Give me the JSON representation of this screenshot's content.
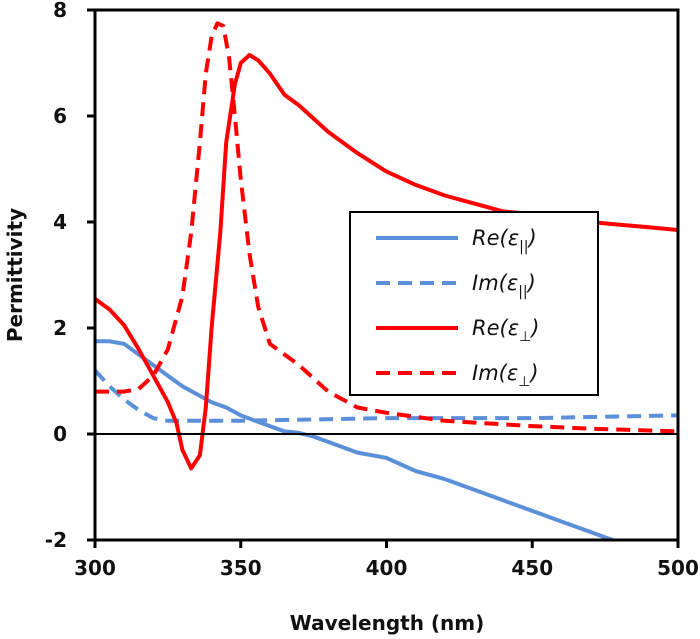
{
  "chart_data": {
    "type": "line",
    "xlabel": "Wavelength (nm)",
    "ylabel": "Permittivity",
    "xlim": [
      300,
      500
    ],
    "ylim": [
      -2,
      8
    ],
    "xticks": [
      300,
      350,
      400,
      450,
      500
    ],
    "yticks": [
      -2,
      0,
      2,
      4,
      6,
      8
    ],
    "grid": false,
    "legend_position": "center-right",
    "series": [
      {
        "name": "Re(ε||)",
        "label_main": "Re(ε",
        "label_sub": "||",
        "color": "#5b8fd8",
        "dash": "solid",
        "x": [
          300,
          305,
          310,
          315,
          320,
          325,
          330,
          335,
          340,
          345,
          350,
          355,
          360,
          365,
          370,
          375,
          380,
          390,
          400,
          410,
          420,
          430,
          440,
          450,
          460,
          470,
          480
        ],
        "y": [
          1.75,
          1.75,
          1.7,
          1.5,
          1.3,
          1.1,
          0.9,
          0.75,
          0.6,
          0.5,
          0.35,
          0.25,
          0.15,
          0.05,
          0.02,
          -0.05,
          -0.15,
          -0.35,
          -0.45,
          -0.7,
          -0.85,
          -1.05,
          -1.25,
          -1.45,
          -1.65,
          -1.85,
          -2.05
        ]
      },
      {
        "name": "Im(ε||)",
        "label_main": "Im(ε",
        "label_sub": "||",
        "color": "#5b8fd8",
        "dash": "dashed",
        "x": [
          300,
          305,
          310,
          315,
          320,
          325,
          350,
          400,
          450,
          500
        ],
        "y": [
          1.2,
          0.9,
          0.65,
          0.45,
          0.3,
          0.25,
          0.25,
          0.3,
          0.3,
          0.35
        ]
      },
      {
        "name": "Re(ε⊥)",
        "label_main": "Re(ε",
        "label_sub": "⊥",
        "color": "#ff0000",
        "dash": "solid",
        "x": [
          300,
          305,
          310,
          315,
          320,
          325,
          328,
          330,
          333,
          336,
          338,
          340,
          343,
          345,
          348,
          350,
          353,
          356,
          360,
          365,
          370,
          380,
          390,
          400,
          410,
          420,
          430,
          440,
          450,
          460,
          470,
          480,
          490,
          500
        ],
        "y": [
          2.55,
          2.35,
          2.05,
          1.6,
          1.1,
          0.6,
          0.2,
          -0.3,
          -0.65,
          -0.4,
          0.5,
          2.0,
          3.8,
          5.5,
          6.6,
          7.0,
          7.15,
          7.05,
          6.8,
          6.4,
          6.2,
          5.7,
          5.3,
          4.95,
          4.7,
          4.5,
          4.35,
          4.2,
          4.15,
          4.05,
          4.0,
          3.95,
          3.9,
          3.85
        ]
      },
      {
        "name": "Im(ε⊥)",
        "label_main": "Im(ε",
        "label_sub": "⊥",
        "color": "#ff0000",
        "dash": "dashed",
        "x": [
          300,
          305,
          310,
          315,
          320,
          325,
          330,
          333,
          336,
          338,
          340,
          342,
          344,
          346,
          348,
          350,
          353,
          356,
          360,
          365,
          370,
          375,
          380,
          390,
          400,
          420,
          450,
          470,
          500
        ],
        "y": [
          0.8,
          0.8,
          0.8,
          0.85,
          1.1,
          1.6,
          2.6,
          3.8,
          5.5,
          6.8,
          7.5,
          7.75,
          7.7,
          7.1,
          6.0,
          4.8,
          3.4,
          2.4,
          1.7,
          1.5,
          1.3,
          1.05,
          0.8,
          0.5,
          0.4,
          0.25,
          0.15,
          0.1,
          0.05
        ]
      }
    ]
  }
}
